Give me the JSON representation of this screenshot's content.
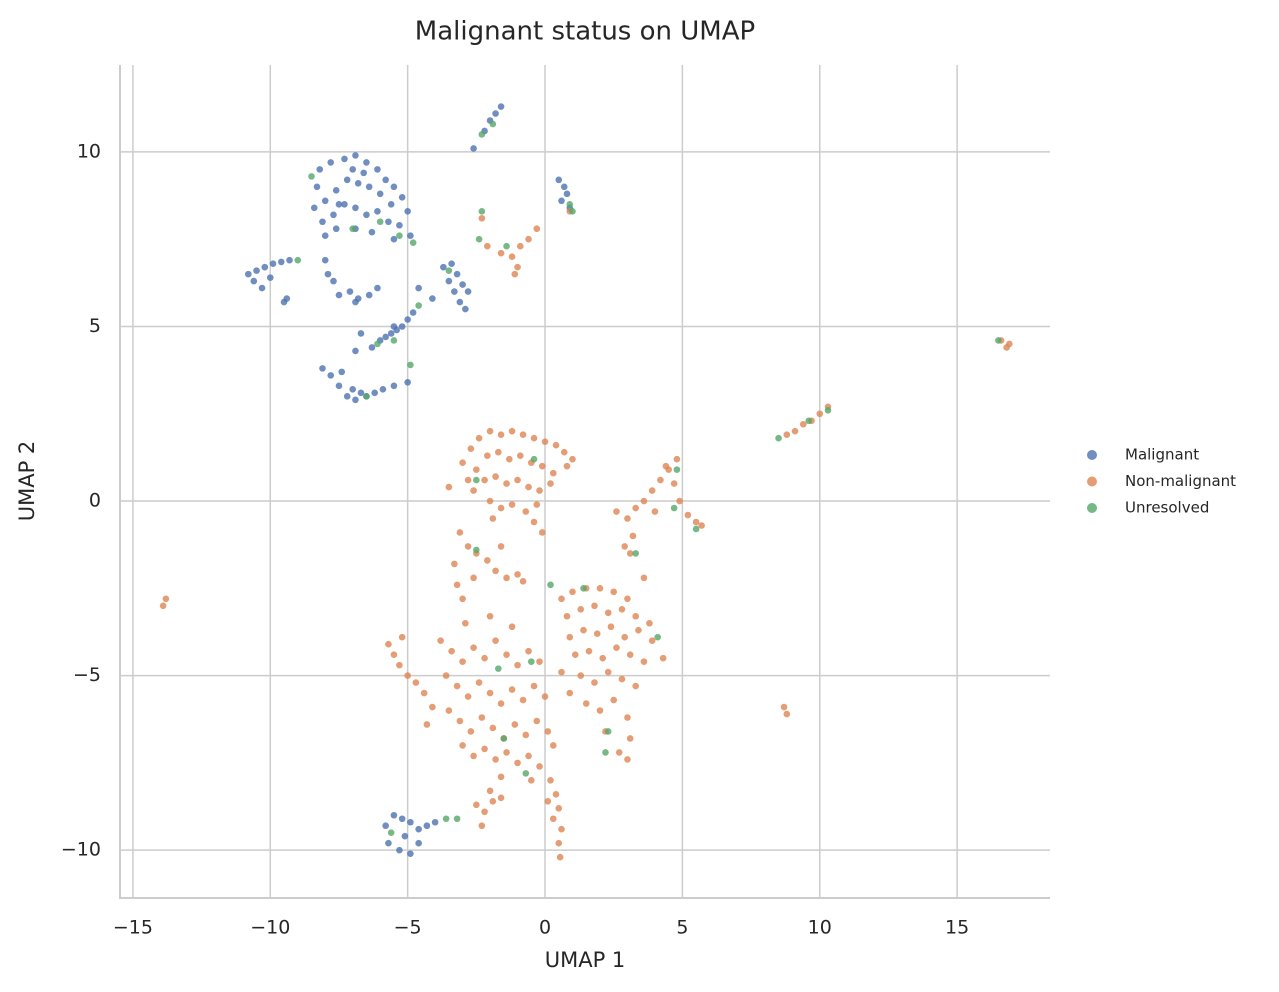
{
  "chart_data": {
    "type": "scatter",
    "title": "Malignant status on UMAP",
    "x_label": "UMAP 1",
    "y_label": "UMAP 2",
    "xlim": [
      -15.47,
      18.38
    ],
    "ylim": [
      -11.37,
      12.49
    ],
    "xticks": [
      {
        "value": -15,
        "label": "−15"
      },
      {
        "value": -10,
        "label": "−10"
      },
      {
        "value": -5,
        "label": "−5"
      },
      0,
      5,
      10,
      15
    ],
    "yticks": [
      {
        "value": -10,
        "label": "−10"
      },
      {
        "value": -5,
        "label": "−5"
      },
      0,
      5,
      10
    ],
    "grid": true,
    "legend": "right",
    "series": [
      {
        "name": "Malignant",
        "color": "#4c72b0",
        "x": [
          -8.2,
          -7.8,
          -7.3,
          -6.9,
          -6.5,
          -6.1,
          -5.8,
          -5.5,
          -5.2,
          -5.0,
          -8.3,
          -8.0,
          -7.6,
          -7.2,
          -6.8,
          -6.4,
          -6.0,
          -5.6,
          -8.4,
          -8.1,
          -7.7,
          -7.3,
          -6.9,
          -6.5,
          -6.1,
          -5.7,
          -5.3,
          -8.0,
          -7.6,
          -6.9,
          -6.3,
          -5.5,
          -4.9,
          -7.0,
          -6.6,
          -7.5,
          -10.8,
          -10.5,
          -10.2,
          -9.9,
          -9.6,
          -9.3,
          -10.6,
          -10.0,
          -9.5,
          -9.4,
          -10.3,
          -8.0,
          -7.7,
          -7.5,
          -7.1,
          -6.8,
          -6.4,
          -6.1,
          -7.9,
          -6.9,
          -6.0,
          -5.8,
          -5.6,
          -5.4,
          -5.2,
          -5.0,
          -4.8,
          -5.5,
          -6.3,
          -6.7,
          -6.9,
          -8.1,
          -7.8,
          -7.5,
          -7.2,
          -6.9,
          -6.5,
          -6.2,
          -5.9,
          -5.5,
          -5.0,
          -7.0,
          -6.7,
          -7.4,
          -3.4,
          -3.2,
          -3.0,
          -3.3,
          -3.1,
          -2.9,
          -3.5,
          -2.8,
          -3.7,
          -4.1,
          -4.6,
          -2.0,
          -1.8,
          -1.6,
          -2.2,
          -2.6,
          0.5,
          0.7,
          0.8,
          0.6,
          0.9,
          -5.8,
          -5.5,
          -5.2,
          -4.9,
          -4.6,
          -4.3,
          -5.7,
          -5.3,
          -4.9,
          -4.6,
          -5.1,
          -4.0
        ],
        "values": [
          9.5,
          9.7,
          9.8,
          9.9,
          9.7,
          9.5,
          9.2,
          9.0,
          8.7,
          8.3,
          9.0,
          8.6,
          8.9,
          9.2,
          9.1,
          9.0,
          8.8,
          8.5,
          8.4,
          8.0,
          8.2,
          8.5,
          8.4,
          8.2,
          8.3,
          8.0,
          7.9,
          7.6,
          7.8,
          7.8,
          7.7,
          7.5,
          7.6,
          9.5,
          9.4,
          8.5,
          6.5,
          6.6,
          6.7,
          6.8,
          6.85,
          6.9,
          6.3,
          6.4,
          5.7,
          5.8,
          6.1,
          6.9,
          6.3,
          5.9,
          6.0,
          5.8,
          5.9,
          6.1,
          6.5,
          5.7,
          4.6,
          4.7,
          4.8,
          4.9,
          5.0,
          5.2,
          5.4,
          5.0,
          4.4,
          4.8,
          4.3,
          3.8,
          3.6,
          3.3,
          3.0,
          2.9,
          3.0,
          3.1,
          3.2,
          3.3,
          3.4,
          3.2,
          3.1,
          3.7,
          6.8,
          6.5,
          6.2,
          6.0,
          5.7,
          5.5,
          6.3,
          6.0,
          6.7,
          5.8,
          6.1,
          10.9,
          11.1,
          11.3,
          10.6,
          10.1,
          9.2,
          9.0,
          8.8,
          8.6,
          8.4,
          -9.3,
          -9.0,
          -9.1,
          -9.2,
          -9.4,
          -9.3,
          -9.8,
          -10.0,
          -10.1,
          -9.8,
          -9.6,
          -9.2
        ]
      },
      {
        "name": "Non-malignant",
        "color": "#dd8452",
        "x": [
          -3.0,
          -2.7,
          -2.4,
          -2.0,
          -1.6,
          -1.2,
          -0.8,
          -0.4,
          0,
          0.4,
          0.7,
          -2.8,
          -2.5,
          -2.1,
          -1.7,
          -1.3,
          -0.9,
          -0.5,
          -0.1,
          0.3,
          0.8,
          -2.6,
          -2.2,
          -1.8,
          -1.4,
          -1.0,
          -0.6,
          -0.2,
          0.2,
          -2.0,
          -1.6,
          -1.2,
          -0.7,
          -0.3,
          -3.5,
          1.0,
          -1.9,
          -0.4,
          3.3,
          3.6,
          3.9,
          4.2,
          4.5,
          4.8,
          4.4,
          4.7,
          4.9,
          5.2,
          5.5,
          5.7,
          3.0,
          3.2,
          3.1,
          2.9,
          4.0,
          2.6,
          -3.1,
          -2.8,
          -2.5,
          -2.1,
          -1.8,
          -1.4,
          -1.0,
          -3.3,
          -3.2,
          -3.0,
          -2.6,
          -1.6,
          -0.8,
          -3.8,
          -3.4,
          -3.0,
          -2.6,
          -2.2,
          -1.8,
          -1.4,
          -1.0,
          -0.6,
          -0.2,
          -3.6,
          -3.2,
          -2.8,
          -2.4,
          -2.0,
          -1.6,
          -1.2,
          -0.8,
          -0.4,
          0.0,
          -3.5,
          -3.1,
          -2.7,
          -2.3,
          -1.9,
          -1.5,
          -1.1,
          -0.7,
          -0.3,
          0.1,
          -3.0,
          -2.6,
          -2.2,
          -1.8,
          -1.4,
          -1.0,
          -0.6,
          -0.2,
          0.3,
          -1.2,
          -2.0,
          -2.9,
          -0.5,
          -1.6,
          0.6,
          1.0,
          1.5,
          2.0,
          2.5,
          3.0,
          0.8,
          1.3,
          1.8,
          2.3,
          2.8,
          3.3,
          3.8,
          0.9,
          1.4,
          1.9,
          2.4,
          2.9,
          3.4,
          3.9,
          1.1,
          1.6,
          2.1,
          2.6,
          3.1,
          3.6,
          1.3,
          1.8,
          2.3,
          2.8,
          3.3,
          1.5,
          2.0,
          2.5,
          3.0,
          3.1,
          2.2,
          2.7,
          3.0,
          0.9,
          0.6,
          0.2,
          0.4,
          0.5,
          0.3,
          0.6,
          0.5,
          0.55,
          0.1,
          -2.5,
          -2.2,
          -1.9,
          -1.6,
          -2.3,
          -2.0,
          -5.7,
          -5.5,
          -5.3,
          -5.0,
          -4.7,
          -4.4,
          -4.1,
          -4.3,
          -5.2,
          -13.8,
          -13.9,
          8.7,
          8.8,
          16.6,
          16.8,
          16.9,
          8.8,
          9.1,
          9.4,
          9.7,
          10.0,
          10.3,
          -2.3,
          -2.1,
          -1.6,
          -1.2,
          -1.0,
          -0.9,
          -0.6,
          -0.3,
          -1.1,
          0.9,
          -0.1,
          3.6,
          4.3
        ],
        "values": [
          1.1,
          1.5,
          1.8,
          2.0,
          1.9,
          2.0,
          1.9,
          1.8,
          1.7,
          1.6,
          1.4,
          0.6,
          0.9,
          1.3,
          1.4,
          1.2,
          1.3,
          1.1,
          1.0,
          0.8,
          1.0,
          0.3,
          0.6,
          0.7,
          0.5,
          0.6,
          0.4,
          0.3,
          0.5,
          0.0,
          -0.2,
          -0.1,
          -0.3,
          -0.1,
          0.4,
          1.2,
          -0.5,
          -0.6,
          -0.2,
          0.0,
          0.3,
          0.6,
          0.9,
          1.2,
          1.0,
          0.5,
          0.0,
          -0.4,
          -0.6,
          -0.7,
          -0.5,
          -1.0,
          -1.5,
          -1.3,
          -0.3,
          -0.3,
          -0.9,
          -1.3,
          -1.5,
          -1.7,
          -2.0,
          -2.2,
          -2.1,
          -1.8,
          -2.4,
          -2.8,
          -2.2,
          -1.3,
          -2.3,
          -4.0,
          -4.3,
          -4.6,
          -4.2,
          -4.5,
          -4.0,
          -4.4,
          -4.7,
          -4.3,
          -4.6,
          -5.0,
          -5.3,
          -5.6,
          -5.2,
          -5.5,
          -5.8,
          -5.4,
          -5.7,
          -5.3,
          -5.6,
          -6.0,
          -6.3,
          -6.6,
          -6.2,
          -6.5,
          -6.8,
          -6.4,
          -6.7,
          -6.3,
          -6.6,
          -7.0,
          -7.3,
          -7.1,
          -7.4,
          -7.2,
          -7.5,
          -7.3,
          -7.6,
          -7.0,
          -3.6,
          -3.3,
          -3.5,
          -8.0,
          -7.9,
          -2.8,
          -2.6,
          -2.5,
          -2.5,
          -2.6,
          -2.8,
          -3.3,
          -3.1,
          -3.0,
          -3.2,
          -3.1,
          -3.3,
          -3.5,
          -3.9,
          -3.7,
          -3.8,
          -3.6,
          -3.9,
          -3.7,
          -4.0,
          -4.4,
          -4.3,
          -4.5,
          -4.2,
          -4.4,
          -4.6,
          -5.0,
          -5.2,
          -4.9,
          -5.1,
          -5.3,
          -5.8,
          -6.0,
          -5.7,
          -6.2,
          -6.8,
          -6.6,
          -7.2,
          -7.4,
          -5.5,
          -4.9,
          -8.0,
          -8.4,
          -8.8,
          -9.1,
          -9.4,
          -9.8,
          -10.2,
          -8.6,
          -8.7,
          -8.9,
          -8.6,
          -8.5,
          -9.3,
          -8.3,
          -4.1,
          -4.4,
          -4.7,
          -5.0,
          -5.2,
          -5.5,
          -5.9,
          -6.4,
          -3.9,
          -2.8,
          -3.0,
          -5.9,
          -6.1,
          4.6,
          4.4,
          4.5,
          1.9,
          2.0,
          2.2,
          2.3,
          2.5,
          2.7,
          8.1,
          7.3,
          7.1,
          7.0,
          6.7,
          7.3,
          7.5,
          7.8,
          6.5,
          8.3,
          -0.9,
          -2.2,
          -4.5
        ]
      },
      {
        "name": "Unresolved",
        "color": "#55a868",
        "x": [
          -8.5,
          -6.0,
          -5.3,
          -4.8,
          -7.0,
          -9.0,
          -6.1,
          -5.5,
          -4.6,
          -4.9,
          -6.5,
          -3.5,
          -2.3,
          -1.9,
          -2.3,
          -2.4,
          -1.4,
          0.9,
          1.0,
          -2.5,
          -2.5,
          -0.4,
          4.8,
          4.7,
          5.5,
          3.3,
          4.1,
          2.3,
          1.4,
          0.2,
          -1.5,
          -1.7,
          -0.5,
          -0.7,
          -3.6,
          -3.2,
          8.5,
          9.6,
          10.3,
          16.5,
          -5.6,
          2.2
        ],
        "values": [
          9.3,
          8.0,
          7.6,
          7.4,
          7.8,
          6.9,
          4.5,
          4.6,
          5.6,
          3.9,
          3.0,
          6.6,
          8.3,
          10.8,
          10.5,
          7.5,
          7.3,
          8.5,
          8.3,
          -1.4,
          0.6,
          1.2,
          0.9,
          -0.2,
          -0.8,
          -1.5,
          -3.9,
          -6.6,
          -2.5,
          -2.4,
          -6.8,
          -4.8,
          -4.6,
          -7.8,
          -9.1,
          -9.1,
          1.8,
          2.3,
          2.6,
          4.6,
          -9.5,
          -7.2
        ]
      }
    ]
  }
}
